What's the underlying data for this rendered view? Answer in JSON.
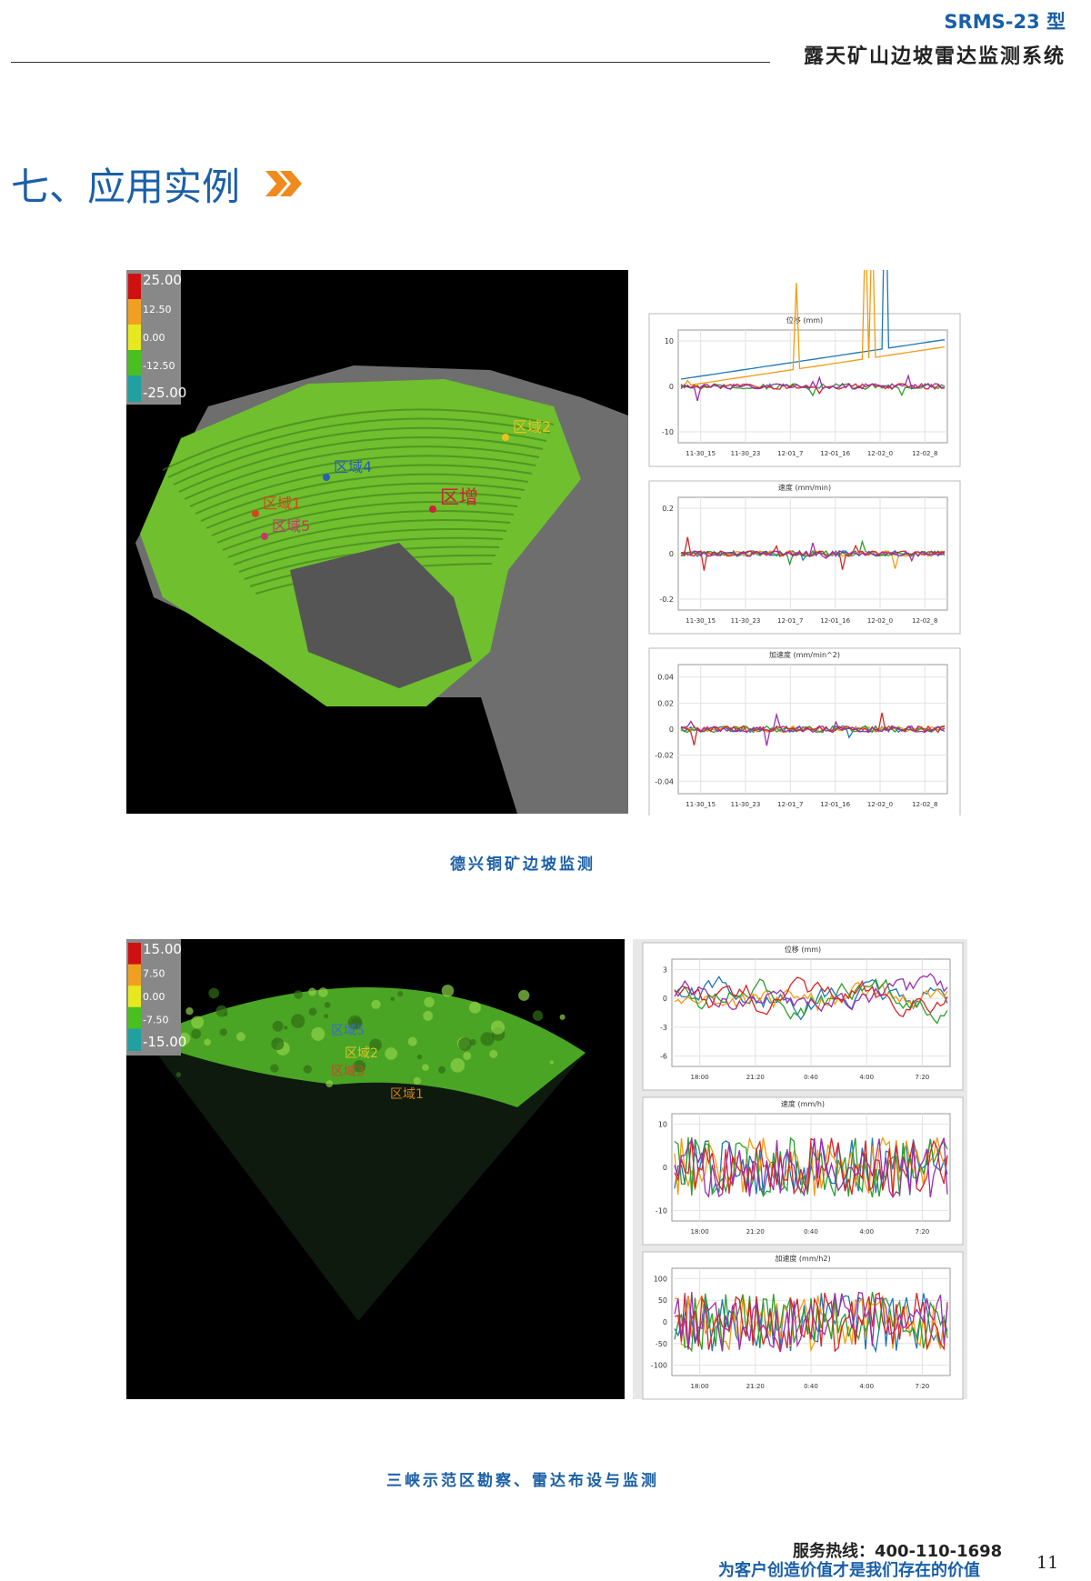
{
  "header": {
    "model": "SRMS-23 型",
    "system": "露天矿山边坡雷达监测系统"
  },
  "section_title": "七、应用实例",
  "figures": [
    {
      "colorbar": [
        "25.00",
        "12.50",
        "0.00",
        "-12.50",
        "-25.00"
      ],
      "regions": [
        "区域2",
        "区域4",
        "区域1",
        "区域5",
        "区增"
      ],
      "charts": [
        {
          "title": "位移 (mm)",
          "yticks": [
            "10",
            "0",
            "-10"
          ],
          "xticks": [
            "11-30_15",
            "11-30_23",
            "12-01_7",
            "12-01_16",
            "12-02_0",
            "12-02_8"
          ]
        },
        {
          "title": "速度 (mm/min)",
          "yticks": [
            "0.2",
            "0",
            "-0.2"
          ],
          "xticks": [
            "11-30_15",
            "11-30_23",
            "12-01_7",
            "12-01_16",
            "12-02_0",
            "12-02_8"
          ]
        },
        {
          "title": "加速度 (mm/min^2)",
          "yticks": [
            "0.04",
            "0.02",
            "0",
            "-0.02",
            "-0.04"
          ],
          "xticks": [
            "11-30_15",
            "11-30_23",
            "12-01_7",
            "12-01_16",
            "12-02_0",
            "12-02_8"
          ]
        }
      ],
      "caption": "德兴铜矿边坡监测"
    },
    {
      "colorbar": [
        "15.00",
        "7.50",
        "0.00",
        "-7.50",
        "-15.00"
      ],
      "regions": [
        "区域5",
        "区域2",
        "区域3",
        "区域1"
      ],
      "charts": [
        {
          "title": "位移 (mm)",
          "yticks": [
            "3",
            "0",
            "-3",
            "-6"
          ],
          "xticks": [
            "18:00",
            "21:20",
            "0:40",
            "4:00",
            "7:20"
          ]
        },
        {
          "title": "速度 (mm/h)",
          "yticks": [
            "10",
            "0",
            "-10"
          ],
          "xticks": [
            "18:00",
            "21:20",
            "0:40",
            "4:00",
            "7:20"
          ]
        },
        {
          "title": "加速度 (mm/h2)",
          "yticks": [
            "100",
            "50",
            "0",
            "-50",
            "-100"
          ],
          "xticks": [
            "18:00",
            "21:20",
            "0:40",
            "4:00",
            "7:20"
          ]
        }
      ],
      "caption": "三峡示范区勘察、雷达布设与监测"
    }
  ],
  "footer": {
    "hotline": "服务热线：400-110-1698",
    "slogan": "为客户创造价值才是我们存在的价值",
    "page": "11"
  }
}
